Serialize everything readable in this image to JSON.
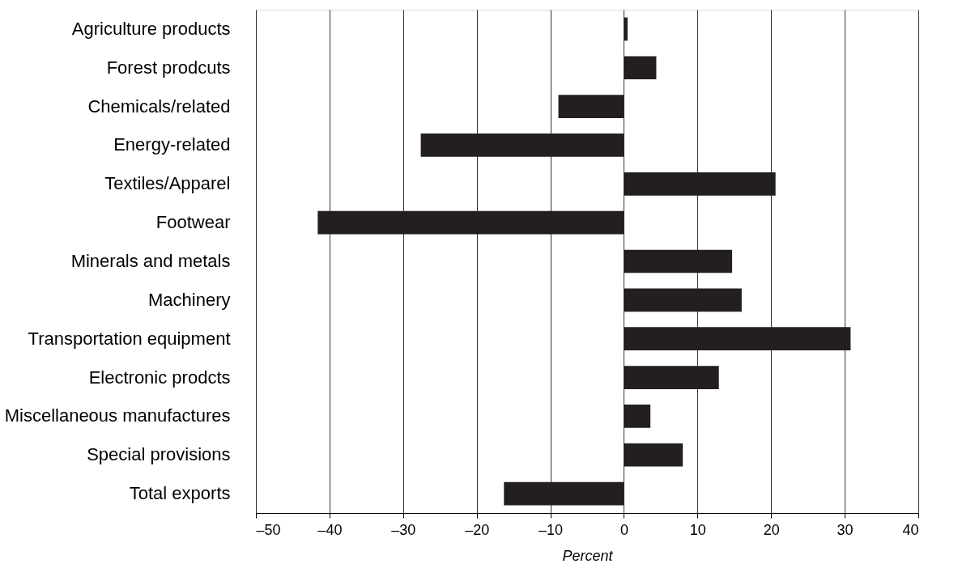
{
  "chart_data": {
    "type": "bar",
    "orientation": "horizontal",
    "categories": [
      "Agriculture products",
      "Forest prodcuts",
      "Chemicals/related",
      "Energy-related",
      "Textiles/Apparel",
      "Footwear",
      "Minerals and metals",
      "Machinery",
      "Transportation equipment",
      "Electronic prodcts",
      "Miscellaneous manufactures",
      "Special provisions",
      "Total exports"
    ],
    "values": [
      0.5,
      4.4,
      -8.9,
      -27.6,
      20.6,
      -41.6,
      14.7,
      16.0,
      30.8,
      12.9,
      3.6,
      8.0,
      -16.3
    ],
    "color": "#231f20",
    "xlabel": "Percent",
    "xlim": [
      -50,
      40
    ],
    "xticks": [
      {
        "value": -50,
        "label": "–50"
      },
      {
        "value": -40,
        "label": "–40"
      },
      {
        "value": -30,
        "label": "–30"
      },
      {
        "value": -20,
        "label": "–20"
      },
      {
        "value": -10,
        "label": "–10"
      },
      0,
      10,
      20,
      30,
      40
    ],
    "grid": "x"
  }
}
